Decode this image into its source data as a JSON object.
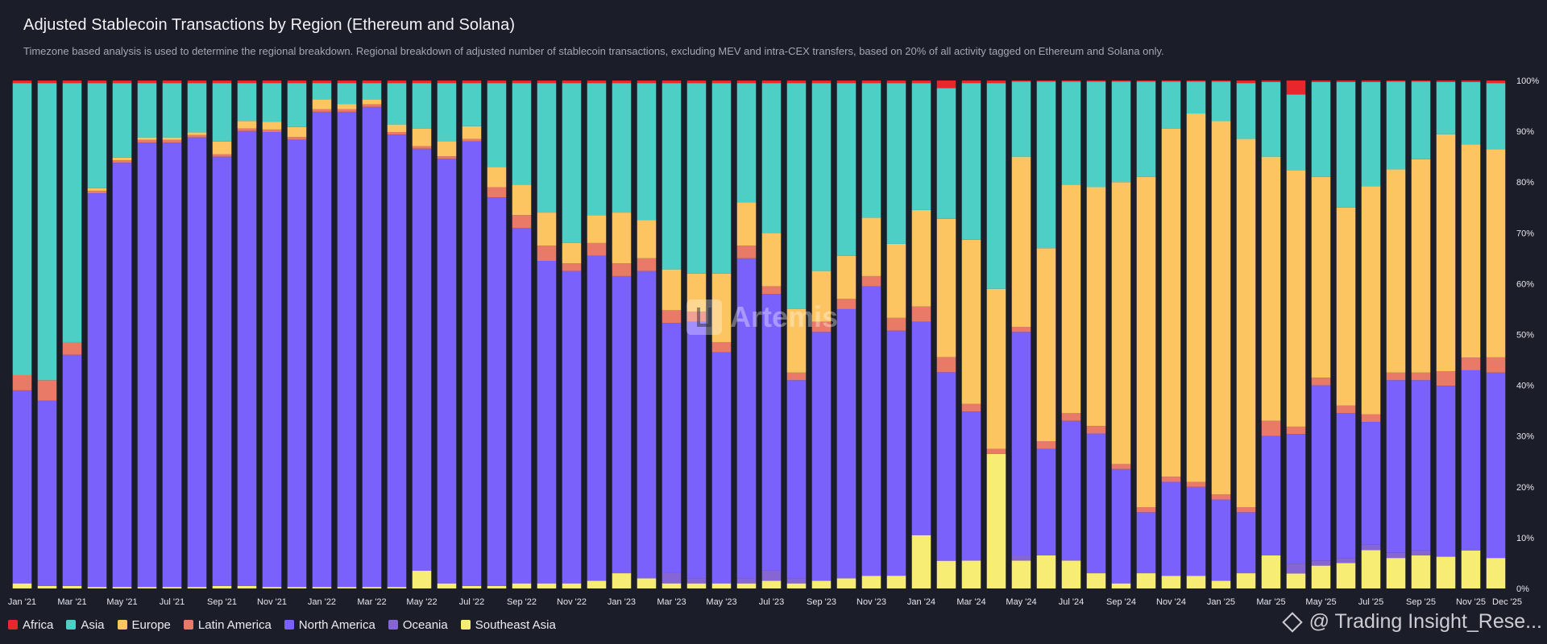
{
  "title": "Adjusted Stablecoin Transactions by Region (Ethereum and Solana)",
  "subtitle": "Timezone based analysis is used to determine the regional breakdown. Regional breakdown of adjusted number of stablecoin transactions, excluding MEV and intra-CEX transfers, based on 20% of all activity tagged on Ethereum and Solana only.",
  "watermark": "Artemis",
  "credit": "@ Trading Insight_Rese...",
  "colors": {
    "background": "#1b1d28",
    "Africa": "#e8272d",
    "Asia": "#4ecfc6",
    "Europe": "#fdc462",
    "Latin America": "#e97a68",
    "North America": "#7b61fc",
    "Oceania": "#8566d4",
    "Southeast Asia": "#f8ed74"
  },
  "chart_data": {
    "type": "bar",
    "stacked": true,
    "percent": true,
    "ylim": [
      0,
      100
    ],
    "yticks": [
      "0%",
      "10%",
      "20%",
      "30%",
      "40%",
      "50%",
      "60%",
      "70%",
      "80%",
      "90%",
      "100%"
    ],
    "x_tick_labels": [
      "Jan '21",
      "Mar '21",
      "May '21",
      "Jul '21",
      "Sep '21",
      "Nov '21",
      "Jan '22",
      "Mar '22",
      "May '22",
      "Jul '22",
      "Sep '22",
      "Nov '22",
      "Jan '23",
      "Mar '23",
      "May '23",
      "Jul '23",
      "Sep '23",
      "Nov '23",
      "Jan '24",
      "Mar '24",
      "May '24",
      "Jul '24",
      "Sep '24",
      "Nov '24",
      "Jan '25",
      "Mar '25",
      "May '25",
      "Jul '25",
      "Sep '25",
      "Nov '25",
      "Dec '25"
    ],
    "legend_position": "bottom-left",
    "grid": false,
    "categories": [
      "2021-01",
      "2021-02",
      "2021-03",
      "2021-04",
      "2021-05",
      "2021-06",
      "2021-07",
      "2021-08",
      "2021-09",
      "2021-10",
      "2021-11",
      "2021-12",
      "2022-01",
      "2022-02",
      "2022-03",
      "2022-04",
      "2022-05",
      "2022-06",
      "2022-07",
      "2022-08",
      "2022-09",
      "2022-10",
      "2022-11",
      "2022-12",
      "2023-01",
      "2023-02",
      "2023-03",
      "2023-04",
      "2023-05",
      "2023-06",
      "2023-07",
      "2023-08",
      "2023-09",
      "2023-10",
      "2023-11",
      "2023-12",
      "2024-01",
      "2024-02",
      "2024-03",
      "2024-04",
      "2024-05",
      "2024-06",
      "2024-07",
      "2024-08",
      "2024-09",
      "2024-10",
      "2024-11",
      "2024-12",
      "2025-01",
      "2025-02",
      "2025-03",
      "2025-04",
      "2025-05",
      "2025-06",
      "2025-07",
      "2025-08",
      "2025-09",
      "2025-10",
      "2025-11",
      "2025-12"
    ],
    "series": [
      {
        "name": "Southeast Asia",
        "values": [
          1,
          0.5,
          0.5,
          0.3,
          0.3,
          0.3,
          0.3,
          0.3,
          0.5,
          0.5,
          0.3,
          0.3,
          0.3,
          0.3,
          0.3,
          0.3,
          3.5,
          1,
          0.5,
          0.5,
          1,
          1,
          1,
          1.5,
          3,
          2,
          1,
          1,
          1,
          1,
          1.5,
          1,
          1.5,
          2,
          2.5,
          2.5,
          10.5,
          5.5,
          5.5,
          26.5,
          5.5,
          6.5,
          5.5,
          3,
          1,
          3,
          2.5,
          2.5,
          1.5,
          3,
          6.5,
          3,
          4.5,
          5,
          7.5,
          6,
          6.5,
          6.5,
          7.5,
          6
        ]
      },
      {
        "name": "Oceania",
        "values": [
          0,
          0,
          0,
          0,
          0,
          0,
          0,
          0,
          0,
          0,
          0,
          0,
          0,
          0,
          0,
          0,
          0,
          0,
          0,
          0,
          0,
          0,
          0,
          0,
          0,
          0,
          2,
          1,
          0,
          1,
          2,
          1,
          0,
          0,
          0,
          0,
          0,
          0,
          0,
          0,
          1,
          0,
          0,
          0,
          0,
          0,
          0,
          0,
          0,
          0,
          0,
          2,
          1,
          1,
          1,
          1,
          1,
          0,
          0,
          0
        ]
      },
      {
        "name": "North America",
        "values": [
          38,
          36.5,
          45.5,
          77.5,
          83.5,
          87.5,
          87.5,
          88.5,
          84.5,
          90,
          90,
          88.5,
          94,
          94,
          94.5,
          89.5,
          83.5,
          84,
          87.5,
          76.5,
          70,
          63.5,
          61.5,
          64,
          58.5,
          60.5,
          49,
          50.5,
          45.5,
          63,
          54.5,
          39,
          49,
          53,
          57,
          48,
          42,
          37.5,
          29.5,
          0,
          44,
          21,
          27.5,
          27.5,
          22.5,
          12,
          18.5,
          17.5,
          16,
          12,
          23.5,
          26,
          34.5,
          28.5,
          24,
          34,
          33.5,
          35,
          35.5,
          36.5
        ]
      },
      {
        "name": "Latin America",
        "values": [
          3,
          4,
          2.5,
          0.5,
          0.5,
          0.5,
          0.5,
          0.5,
          0.5,
          0.5,
          0.5,
          0.5,
          0.5,
          0.5,
          0.5,
          0.5,
          0.5,
          0.5,
          0.5,
          2,
          2.5,
          3,
          1.5,
          2.5,
          2.5,
          2.5,
          2.5,
          2,
          2,
          2.5,
          1.5,
          1.5,
          2,
          2,
          2,
          2.5,
          3,
          3,
          1.5,
          1,
          1,
          1.5,
          1.5,
          1.5,
          1,
          1,
          1,
          1,
          1,
          1,
          3,
          1.5,
          1.5,
          1.5,
          1.5,
          1.5,
          1.5,
          3,
          2.5,
          3
        ]
      },
      {
        "name": "Europe",
        "values": [
          0,
          0,
          0,
          0.5,
          0.5,
          0.5,
          0.5,
          0.5,
          2.5,
          1.5,
          1.5,
          2,
          2,
          1,
          1,
          1.5,
          3.5,
          3,
          2.5,
          4,
          6,
          6.5,
          4,
          5.5,
          10,
          7.5,
          8,
          7.5,
          13.5,
          8.5,
          10.5,
          12.5,
          10,
          8.5,
          11.5,
          14.5,
          19,
          27.5,
          32.5,
          31.5,
          33.5,
          38,
          45,
          47,
          55.5,
          65,
          68.5,
          72.5,
          73.5,
          72.5,
          52,
          51.5,
          39.5,
          39,
          44.5,
          40,
          42,
          48.5,
          42,
          41
        ]
      },
      {
        "name": "Asia",
        "values": [
          57.5,
          58.5,
          51,
          20.7,
          14.7,
          10.7,
          10.7,
          9.7,
          11.5,
          7.5,
          7.7,
          8.7,
          3.2,
          4.2,
          3.2,
          8.2,
          9,
          11.5,
          8.5,
          16.5,
          20,
          25.5,
          31.5,
          26,
          25.5,
          27,
          36.5,
          37.5,
          37.5,
          23.5,
          29.5,
          44.5,
          37,
          34,
          26.5,
          31.5,
          25,
          26,
          31,
          40.5,
          14.8,
          32.8,
          20.3,
          20.8,
          19.8,
          18.8,
          9.3,
          6.3,
          7.8,
          11,
          14.7,
          15.2,
          18.7,
          24.7,
          20.3,
          17.3,
          15.3,
          10.7,
          12.3,
          13
        ]
      },
      {
        "name": "Africa",
        "values": [
          0.5,
          0.5,
          0.5,
          0.5,
          0.5,
          0.5,
          0.5,
          0.5,
          0.5,
          0.5,
          0.5,
          0.5,
          0.5,
          0.5,
          0.5,
          0.5,
          0.5,
          0.5,
          0.5,
          0.5,
          0.5,
          0.5,
          0.5,
          0.5,
          0.5,
          0.5,
          0.5,
          0.5,
          0.5,
          0.5,
          0.5,
          0.5,
          0.5,
          0.5,
          0.5,
          0.5,
          0.5,
          1.5,
          0.5,
          0.5,
          0.2,
          0.2,
          0.2,
          0.2,
          0.2,
          0.2,
          0.2,
          0.2,
          0.2,
          0.5,
          0.3,
          2.8,
          0.3,
          0.3,
          0.3,
          0.2,
          0.2,
          0.3,
          0.3,
          0.5
        ]
      }
    ]
  }
}
